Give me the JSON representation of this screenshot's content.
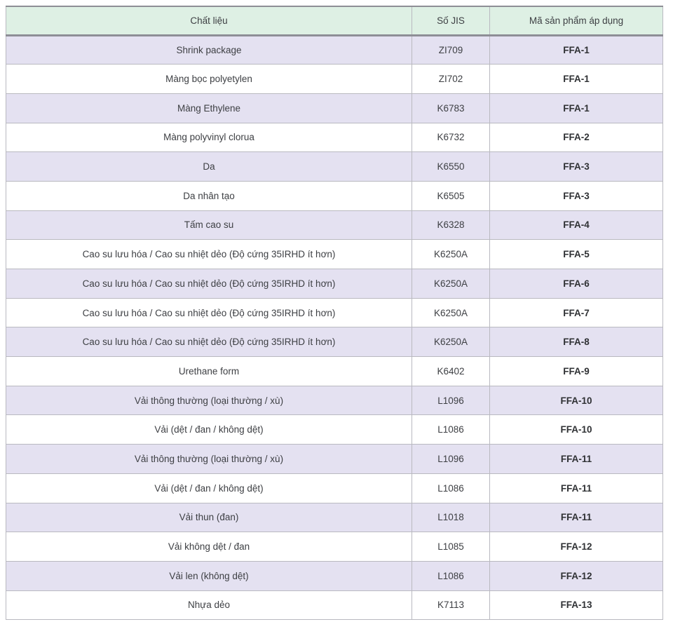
{
  "table": {
    "columns": [
      {
        "key": "material",
        "label": "Chất liệu"
      },
      {
        "key": "jis",
        "label": "Số JIS"
      },
      {
        "key": "product",
        "label": "Mã sản phẩm áp dụng"
      }
    ],
    "rows": [
      {
        "material": "Shrink package",
        "jis": "ZI709",
        "product": "FFA-1"
      },
      {
        "material": "Màng bọc polyetylen",
        "jis": "ZI702",
        "product": "FFA-1"
      },
      {
        "material": "Màng Ethylene",
        "jis": "K6783",
        "product": "FFA-1"
      },
      {
        "material": "Màng polyvinyl clorua",
        "jis": "K6732",
        "product": "FFA-2"
      },
      {
        "material": "Da",
        "jis": "K6550",
        "product": "FFA-3"
      },
      {
        "material": "Da nhân tạo",
        "jis": "K6505",
        "product": "FFA-3"
      },
      {
        "material": "Tấm cao su",
        "jis": "K6328",
        "product": "FFA-4"
      },
      {
        "material": "Cao su lưu hóa / Cao su nhiệt dẻo (Độ cứng 35IRHD ít hơn)",
        "jis": "K6250A",
        "product": "FFA-5"
      },
      {
        "material": "Cao su lưu hóa / Cao su nhiệt dẻo (Độ cứng 35IRHD ít hơn)",
        "jis": "K6250A",
        "product": "FFA-6"
      },
      {
        "material": "Cao su lưu hóa / Cao su nhiệt dẻo (Độ cứng 35IRHD ít hơn)",
        "jis": "K6250A",
        "product": "FFA-7"
      },
      {
        "material": "Cao su lưu hóa / Cao su nhiệt dẻo (Độ cứng 35IRHD ít hơn)",
        "jis": "K6250A",
        "product": "FFA-8"
      },
      {
        "material": "Urethane form",
        "jis": "K6402",
        "product": "FFA-9"
      },
      {
        "material": "Vải thông thường (loại thường / xù)",
        "jis": "L1096",
        "product": "FFA-10"
      },
      {
        "material": "Vải (dệt / đan / không dệt)",
        "jis": "L1086",
        "product": "FFA-10"
      },
      {
        "material": "Vải thông thường (loại thường / xù)",
        "jis": "L1096",
        "product": "FFA-11"
      },
      {
        "material": "Vải (dệt / đan / không dệt)",
        "jis": "L1086",
        "product": "FFA-11"
      },
      {
        "material": "Vải thun (đan)",
        "jis": "L1018",
        "product": "FFA-11"
      },
      {
        "material": "Vải không dệt / đan",
        "jis": "L1085",
        "product": "FFA-12"
      },
      {
        "material": "Vải len (không dệt)",
        "jis": "L1086",
        "product": "FFA-12"
      },
      {
        "material": "Nhựa dẻo",
        "jis": "K7113",
        "product": "FFA-13"
      }
    ],
    "colors": {
      "header_bg": "#def0e4",
      "row_alt_bg": "#e4e1f1",
      "grid_line": "#b9b9c0",
      "header_divider": "#8e8e96",
      "text": "#3d3f43"
    }
  }
}
